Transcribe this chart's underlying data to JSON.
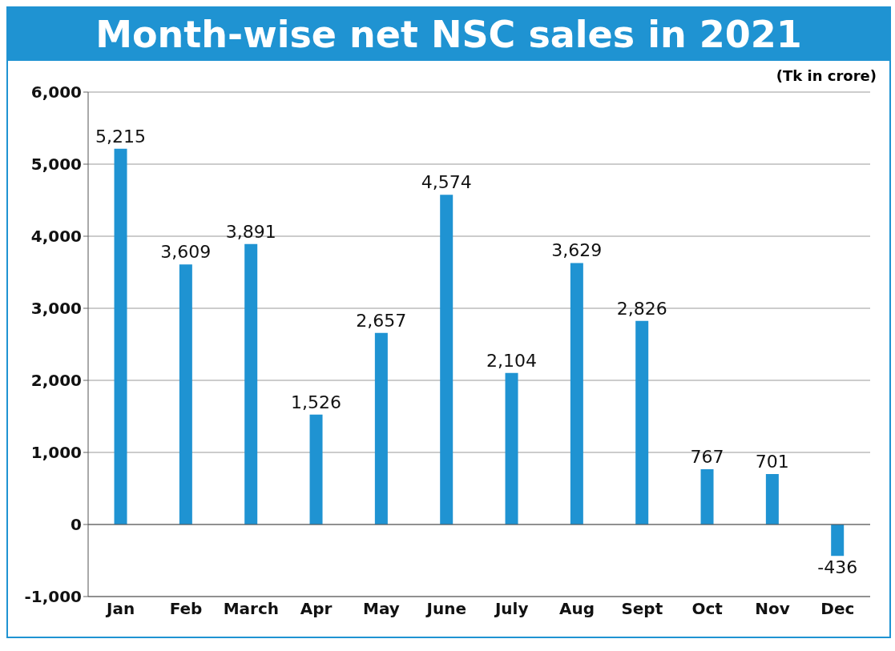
{
  "chart_data": {
    "type": "bar",
    "title": "Month-wise net NSC sales in 2021",
    "annotations": [
      "(Tk in crore)"
    ],
    "categories": [
      "Jan",
      "Feb",
      "March",
      "Apr",
      "May",
      "June",
      "July",
      "Aug",
      "Sept",
      "Oct",
      "Nov",
      "Dec"
    ],
    "values": [
      5215,
      3609,
      3891,
      1526,
      2657,
      4574,
      2104,
      3629,
      2826,
      767,
      701,
      -436
    ],
    "value_labels": [
      "5,215",
      "3,609",
      "3,891",
      "1,526",
      "2,657",
      "4,574",
      "2,104",
      "3,629",
      "2,826",
      "767",
      "701",
      "-436"
    ],
    "color": "#1f93d2",
    "ylim": [
      -1000,
      6000
    ],
    "yticks": [
      {
        "value": -1000,
        "label": "-1,000"
      },
      0,
      {
        "value": 1000,
        "label": "1,000"
      },
      {
        "value": 2000,
        "label": "2,000"
      },
      {
        "value": 3000,
        "label": "3,000"
      },
      {
        "value": 4000,
        "label": "4,000"
      },
      {
        "value": 5000,
        "label": "5,000"
      },
      {
        "value": 6000,
        "label": "6,000"
      }
    ],
    "grid": "y"
  }
}
